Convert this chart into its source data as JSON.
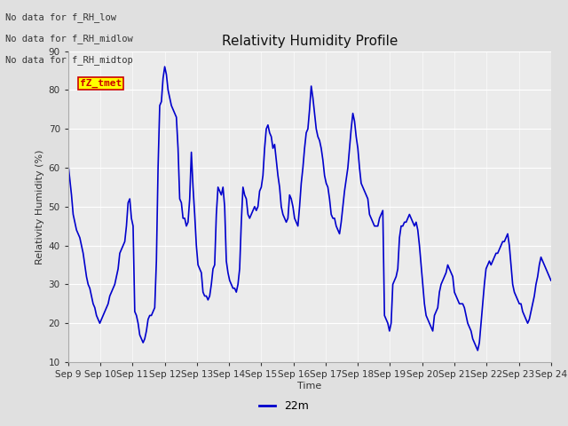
{
  "title": "Relativity Humidity Profile",
  "xlabel": "Time",
  "ylabel": "Relativity Humidity (%)",
  "ylim": [
    10,
    90
  ],
  "yticks": [
    10,
    20,
    30,
    40,
    50,
    60,
    70,
    80,
    90
  ],
  "xtick_labels": [
    "Sep 9",
    "Sep 10",
    "Sep 11",
    "Sep 12",
    "Sep 13",
    "Sep 14",
    "Sep 15",
    "Sep 16",
    "Sep 17",
    "Sep 18",
    "Sep 19",
    "Sep 20",
    "Sep 21",
    "Sep 22",
    "Sep 23",
    "Sep 24"
  ],
  "line_color": "#0000cc",
  "line_width": 1.2,
  "legend_label": "22m",
  "bg_color": "#e0e0e0",
  "plot_bg_color": "#ebebeb",
  "annotations": [
    "No data for f_RH_low",
    "No data for f_RH_midlow",
    "No data for f_RH_midtop"
  ],
  "annotation_color": "#333333",
  "annotation_fontsize": 7.5,
  "watermark_text": "fZ_tmet",
  "watermark_color": "#cc0000",
  "watermark_bg": "#ffff00",
  "title_fontsize": 11,
  "axis_label_fontsize": 8,
  "tick_fontsize": 7.5,
  "legend_fontsize": 9,
  "rh_values": [
    61,
    57,
    53,
    48,
    46,
    44,
    43,
    42,
    40,
    38,
    35,
    32,
    30,
    29,
    27,
    25,
    24,
    22,
    21,
    20,
    21,
    22,
    23,
    24,
    25,
    27,
    28,
    29,
    30,
    32,
    34,
    38,
    39,
    40,
    41,
    45,
    51,
    52,
    47,
    45,
    23,
    22,
    20,
    17,
    16,
    15,
    16,
    18,
    21,
    22,
    22,
    23,
    24,
    36,
    60,
    76,
    77,
    83,
    86,
    84,
    80,
    78,
    76,
    75,
    74,
    73,
    65,
    52,
    51,
    47,
    47,
    45,
    46,
    52,
    64,
    55,
    48,
    40,
    35,
    34,
    33,
    28,
    27,
    27,
    26,
    27,
    30,
    34,
    35,
    48,
    55,
    54,
    53,
    55,
    50,
    36,
    33,
    31,
    30,
    29,
    29,
    28,
    30,
    34,
    46,
    55,
    53,
    52,
    48,
    47,
    48,
    49,
    50,
    49,
    50,
    54,
    55,
    58,
    65,
    70,
    71,
    69,
    68,
    65,
    66,
    62,
    58,
    55,
    50,
    48,
    47,
    46,
    47,
    53,
    52,
    50,
    47,
    46,
    45,
    50,
    56,
    60,
    65,
    69,
    70,
    75,
    81,
    78,
    74,
    70,
    68,
    67,
    65,
    62,
    58,
    56,
    55,
    52,
    48,
    47,
    47,
    45,
    44,
    43,
    46,
    50,
    54,
    57,
    60,
    65,
    70,
    74,
    72,
    68,
    65,
    60,
    56,
    55,
    54,
    53,
    52,
    48,
    47,
    46,
    45,
    45,
    45,
    47,
    48,
    49,
    22,
    21,
    20,
    18,
    20,
    30,
    31,
    32,
    34,
    42,
    45,
    45,
    46,
    46,
    47,
    48,
    47,
    46,
    45,
    46,
    44,
    40,
    35,
    30,
    25,
    22,
    21,
    20,
    19,
    18,
    22,
    23,
    24,
    28,
    30,
    31,
    32,
    33,
    35,
    34,
    33,
    32,
    28,
    27,
    26,
    25,
    25,
    25,
    24,
    22,
    20,
    19,
    18,
    16,
    15,
    14,
    13,
    15,
    20,
    25,
    30,
    34,
    35,
    36,
    35,
    36,
    37,
    38,
    38,
    39,
    40,
    41,
    41,
    42,
    43,
    40,
    35,
    30,
    28,
    27,
    26,
    25,
    25,
    23,
    22,
    21,
    20,
    21,
    23,
    25,
    27,
    30,
    32,
    35,
    37,
    36,
    35,
    34,
    33,
    32,
    31
  ]
}
